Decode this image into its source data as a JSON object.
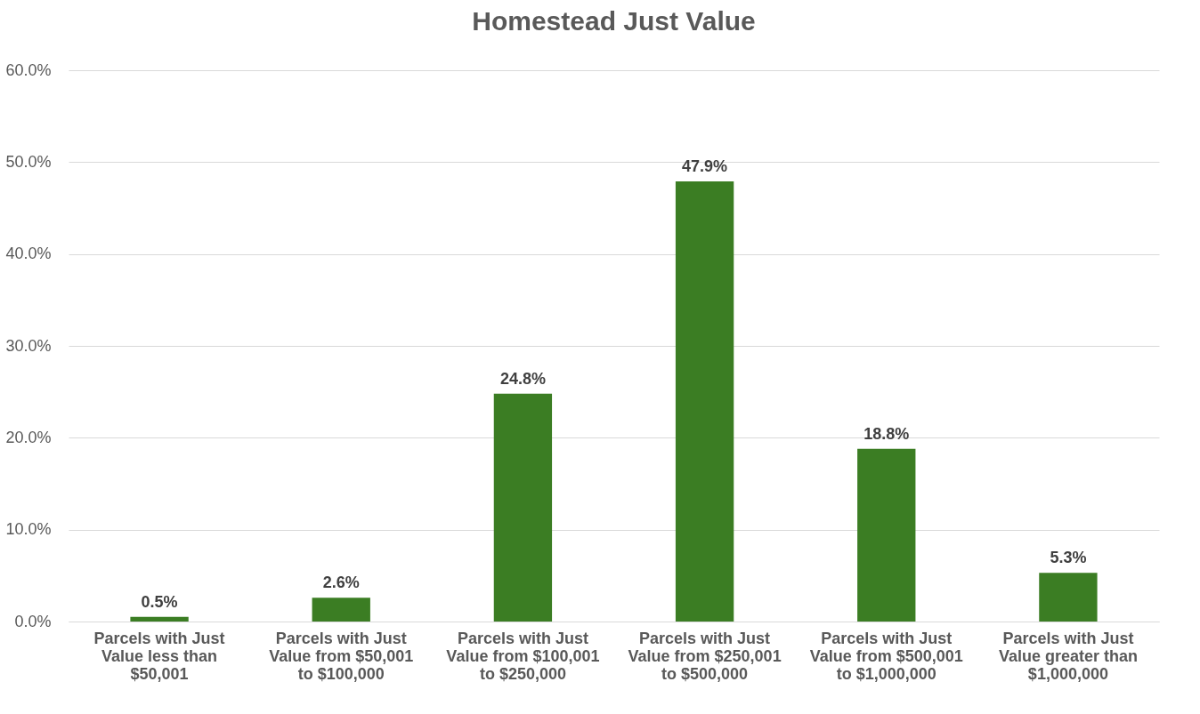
{
  "chart_data": {
    "type": "bar",
    "title": "Homestead Just Value",
    "categories": [
      "Parcels with Just Value less than $50,001",
      "Parcels with Just Value from $50,001 to $100,000",
      "Parcels with Just Value from $100,001 to $250,000",
      "Parcels with Just Value from $250,001 to $500,000",
      "Parcels with Just Value from $500,001 to $1,000,000",
      "Parcels with Just Value greater than $1,000,000"
    ],
    "values": [
      0.5,
      2.6,
      24.8,
      47.9,
      18.8,
      5.3
    ],
    "value_labels": [
      "0.5%",
      "2.6%",
      "24.8%",
      "47.9%",
      "18.8%",
      "5.3%"
    ],
    "color": "#3b7d23",
    "ylim": [
      0,
      60
    ],
    "yticks": [
      {
        "value": 0,
        "label": "0.0%"
      },
      {
        "value": 10,
        "label": "10.0%"
      },
      {
        "value": 20,
        "label": "20.0%"
      },
      {
        "value": 30,
        "label": "30.0%"
      },
      {
        "value": 40,
        "label": "40.0%"
      },
      {
        "value": 50,
        "label": "50.0%"
      },
      {
        "value": 60,
        "label": "60.0%"
      }
    ],
    "grid": "y"
  }
}
